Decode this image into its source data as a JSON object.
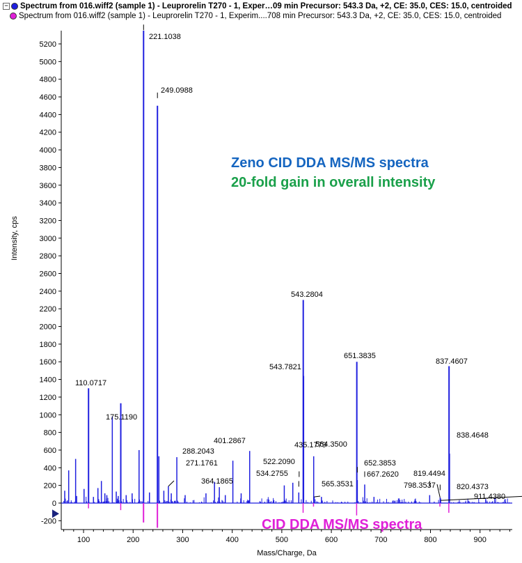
{
  "legend": {
    "collapse_glyph": "−",
    "entries": [
      {
        "text": "Spectrum from 016.wiff2 (sample 1) - Leuprorelin T270 - 1, Exper…09 min Precursor: 543.3 Da, +2, CE: 35.0, CES: 15.0, centroided",
        "color": "#1f1fdf"
      },
      {
        "text": "Spectrum from 016.wiff2 (sample 1) - Leuprorelin T270 - 1, Experim....708 min Precursor: 543.3 Da, +2, CE: 35.0, CES: 15.0, centroided",
        "color": "#e020d8"
      }
    ]
  },
  "annotations": {
    "zeno_title": "Zeno CID DDA MS/MS spectra",
    "gain_text": "20-fold gain in overall intensity",
    "cid_title": "CID DDA MS/MS spectra",
    "zeno_color": "#1565c0",
    "gain_color": "#1aa04a",
    "cid_color": "#e020d8"
  },
  "chart_data": {
    "type": "bar",
    "xlabel": "Mass/Charge, Da",
    "ylabel": "Intensity, cps",
    "xlim": [
      55,
      965
    ],
    "ylim": [
      -300,
      5350
    ],
    "xticks": [
      100,
      200,
      300,
      400,
      500,
      600,
      700,
      800,
      900
    ],
    "yticks": [
      -200,
      0,
      200,
      400,
      600,
      800,
      1000,
      1200,
      1400,
      1600,
      1800,
      2000,
      2200,
      2400,
      2600,
      2800,
      3000,
      3200,
      3400,
      3600,
      3800,
      4000,
      4200,
      4400,
      4600,
      4800,
      5000,
      5200
    ],
    "series": [
      {
        "color": "#1f1fdf",
        "peaks": [
          {
            "x": 62,
            "y": 140
          },
          {
            "x": 70,
            "y": 370
          },
          {
            "x": 84,
            "y": 500
          },
          {
            "x": 86,
            "y": 80
          },
          {
            "x": 101,
            "y": 160
          },
          {
            "x": 110.0717,
            "y": 1300,
            "label": "110.0717"
          },
          {
            "x": 120,
            "y": 70
          },
          {
            "x": 129,
            "y": 170
          },
          {
            "x": 136,
            "y": 250
          },
          {
            "x": 143,
            "y": 110
          },
          {
            "x": 147,
            "y": 90
          },
          {
            "x": 158,
            "y": 980
          },
          {
            "x": 166,
            "y": 130
          },
          {
            "x": 170,
            "y": 80
          },
          {
            "x": 175.119,
            "y": 1130,
            "label": "175.1190"
          },
          {
            "x": 186,
            "y": 90
          },
          {
            "x": 198,
            "y": 110
          },
          {
            "x": 212,
            "y": 600
          },
          {
            "x": 221.1038,
            "y": 5350,
            "label": "221.1038"
          },
          {
            "x": 233,
            "y": 120
          },
          {
            "x": 249.0988,
            "y": 4500,
            "label": "249.0988"
          },
          {
            "x": 252,
            "y": 530
          },
          {
            "x": 262,
            "y": 140
          },
          {
            "x": 271.1761,
            "y": 190,
            "label": "271.1761"
          },
          {
            "x": 277,
            "y": 110
          },
          {
            "x": 288.2043,
            "y": 520,
            "label": "288.2043"
          },
          {
            "x": 305,
            "y": 90
          },
          {
            "x": 347,
            "y": 110
          },
          {
            "x": 364.1865,
            "y": 240,
            "label": "364.1865"
          },
          {
            "x": 374,
            "y": 180
          },
          {
            "x": 386,
            "y": 90
          },
          {
            "x": 401.2867,
            "y": 480,
            "label": "401.2867"
          },
          {
            "x": 418,
            "y": 110
          },
          {
            "x": 435.1779,
            "y": 590,
            "label": "435.1779"
          },
          {
            "x": 505,
            "y": 200
          },
          {
            "x": 522.209,
            "y": 230,
            "label": "522.2090"
          },
          {
            "x": 534.2755,
            "y": 120,
            "label": "534.2755"
          },
          {
            "x": 543.2804,
            "y": 2300,
            "label": "543.2804"
          },
          {
            "x": 543.7821,
            "y": 1440,
            "label": "543.7821"
          },
          {
            "x": 564.35,
            "y": 530,
            "label": "564.3500"
          },
          {
            "x": 565.3531,
            "y": 70,
            "label": "565.3531"
          },
          {
            "x": 580,
            "y": 70
          },
          {
            "x": 651.3835,
            "y": 1600,
            "label": "651.3835"
          },
          {
            "x": 652.3853,
            "y": 260,
            "label": "652.3853"
          },
          {
            "x": 667.262,
            "y": 210,
            "label": "667.2620"
          },
          {
            "x": 686,
            "y": 70
          },
          {
            "x": 798.3537,
            "y": 90,
            "label": "798.3537"
          },
          {
            "x": 819.4494,
            "y": 60,
            "label": "819.4494"
          },
          {
            "x": 820.4373,
            "y": 30,
            "label": "820.4373"
          },
          {
            "x": 837.4607,
            "y": 1550,
            "label": "837.4607"
          },
          {
            "x": 838.4648,
            "y": 560,
            "label": "838.4648"
          },
          {
            "x": 911.438,
            "y": 45,
            "label": "911.4380"
          }
        ]
      },
      {
        "color": "#e020d8",
        "peaks": [
          {
            "x": 110,
            "y": -60
          },
          {
            "x": 175,
            "y": -80
          },
          {
            "x": 221,
            "y": -220
          },
          {
            "x": 249,
            "y": -280
          },
          {
            "x": 543,
            "y": -110
          },
          {
            "x": 564,
            "y": -40
          },
          {
            "x": 651,
            "y": -140
          },
          {
            "x": 837,
            "y": -110
          },
          {
            "x": 819,
            "y": -40
          }
        ]
      }
    ]
  }
}
